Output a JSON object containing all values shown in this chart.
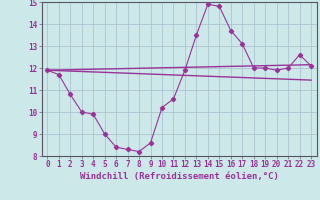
{
  "hours": [
    0,
    1,
    2,
    3,
    4,
    5,
    6,
    7,
    8,
    9,
    10,
    11,
    12,
    13,
    14,
    15,
    16,
    17,
    18,
    19,
    20,
    21,
    22,
    23
  ],
  "windchill": [
    11.9,
    11.7,
    10.8,
    10.0,
    9.9,
    9.0,
    8.4,
    8.3,
    8.2,
    8.6,
    10.2,
    10.6,
    11.9,
    13.5,
    14.9,
    14.8,
    13.7,
    13.1,
    12.0,
    12.0,
    11.9,
    12.0,
    12.6,
    12.1
  ],
  "trend1_x": [
    0,
    23
  ],
  "trend1_y": [
    11.9,
    12.15
  ],
  "trend2_x": [
    0,
    23
  ],
  "trend2_y": [
    11.9,
    11.45
  ],
  "ylim": [
    8,
    15
  ],
  "xlim": [
    -0.5,
    23.5
  ],
  "yticks": [
    8,
    9,
    10,
    11,
    12,
    13,
    14,
    15
  ],
  "xticks": [
    0,
    1,
    2,
    3,
    4,
    5,
    6,
    7,
    8,
    9,
    10,
    11,
    12,
    13,
    14,
    15,
    16,
    17,
    18,
    19,
    20,
    21,
    22,
    23
  ],
  "line_color": "#993399",
  "background_color": "#cce8e8",
  "grid_color": "#aabbcc",
  "xlabel": "Windchill (Refroidissement éolien,°C)",
  "xlabel_fontsize": 6.5,
  "tick_fontsize": 5.5,
  "figsize": [
    3.2,
    2.0
  ],
  "dpi": 100
}
